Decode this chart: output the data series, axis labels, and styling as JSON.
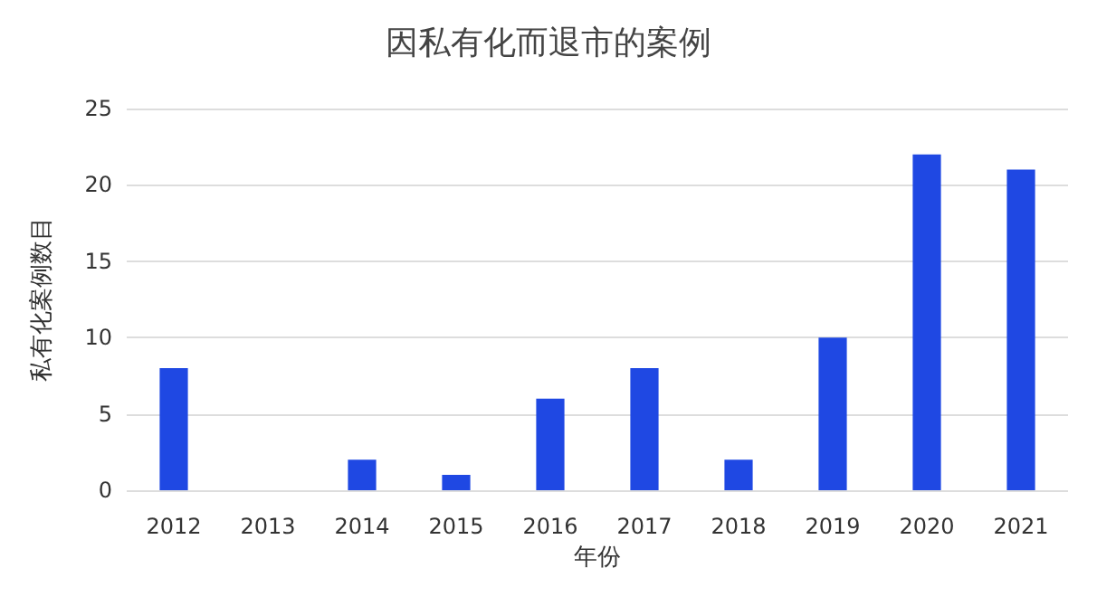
{
  "chart_data": {
    "type": "bar",
    "title": "因私有化而退市的案例",
    "xlabel": "年份",
    "ylabel": "私有化案例数目",
    "categories": [
      "2012",
      "2013",
      "2014",
      "2015",
      "2016",
      "2017",
      "2018",
      "2019",
      "2020",
      "2021"
    ],
    "values": [
      8,
      0,
      2,
      1,
      6,
      8,
      2,
      10,
      22,
      21
    ],
    "color": "#1f48e3",
    "ylim": [
      0,
      25
    ],
    "yticks": [
      0,
      5,
      10,
      15,
      20,
      25
    ],
    "grid": "y"
  }
}
